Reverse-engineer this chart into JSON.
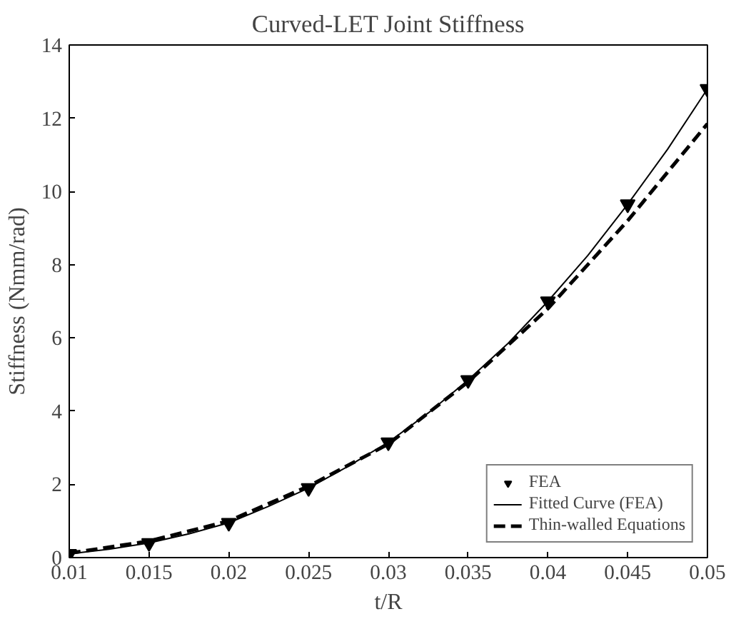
{
  "chart_data": {
    "type": "line",
    "title": "Curved-LET Joint Stiffness",
    "xlabel": "t/R",
    "ylabel": "Stiffness (Nmm/rad)",
    "xlim": [
      0.01,
      0.05
    ],
    "xticks": [
      0.01,
      0.015,
      0.02,
      0.025,
      0.03,
      0.035,
      0.04,
      0.045,
      0.05
    ],
    "ylim": [
      0,
      14
    ],
    "yticks": [
      0,
      2,
      4,
      6,
      8,
      10,
      12,
      14
    ],
    "grid": false,
    "legend": "bottom right",
    "series": [
      {
        "name": "FEA",
        "type": "scatter",
        "marker": "triangle",
        "color": "#000000",
        "x": [
          0.01,
          0.015,
          0.02,
          0.025,
          0.03,
          0.035,
          0.04,
          0.045,
          0.05
        ],
        "values": [
          0.1,
          0.4,
          0.95,
          1.9,
          3.15,
          4.85,
          7.0,
          9.65,
          12.8
        ]
      },
      {
        "name": "Fitted Curve (FEA)",
        "line_style": "solid",
        "color": "#000000",
        "x": [
          0.01,
          0.0125,
          0.015,
          0.0175,
          0.02,
          0.0225,
          0.025,
          0.0275,
          0.03,
          0.0325,
          0.035,
          0.0375,
          0.04,
          0.0425,
          0.045,
          0.0475,
          0.05
        ],
        "values": [
          0.1,
          0.23,
          0.4,
          0.65,
          0.95,
          1.4,
          1.9,
          2.5,
          3.15,
          3.95,
          4.85,
          5.85,
          7.0,
          8.25,
          9.65,
          11.15,
          12.8
        ]
      },
      {
        "name": "Thin-walled Equations",
        "line_style": "dashed",
        "color": "#000000",
        "x": [
          0.01,
          0.015,
          0.02,
          0.025,
          0.03,
          0.035,
          0.04,
          0.045,
          0.05
        ],
        "values": [
          0.12,
          0.45,
          1.0,
          1.95,
          3.1,
          4.8,
          6.8,
          9.2,
          11.85
        ]
      }
    ]
  }
}
